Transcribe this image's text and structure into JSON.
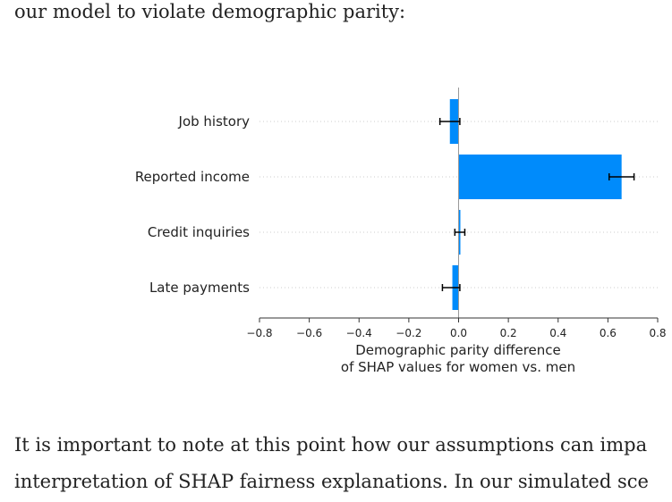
{
  "article": {
    "intro_line": "our model to violate demographic parity:",
    "para_line_1": "It is important to note at this point how our assumptions can impa",
    "para_line_2": "interpretation of SHAP fairness explanations. In our simulated sce"
  },
  "colors": {
    "bar": "#008bfb",
    "text": "#222222",
    "axis": "#333333"
  },
  "chart_data": {
    "type": "bar",
    "orientation": "horizontal",
    "categories": [
      "Job history",
      "Reported income",
      "Credit inquiries",
      "Late payments"
    ],
    "values": [
      -0.035,
      0.655,
      0.005,
      -0.025
    ],
    "error_low": [
      -0.075,
      0.605,
      -0.015,
      -0.065
    ],
    "error_high": [
      0.005,
      0.705,
      0.025,
      0.005
    ],
    "xlim": [
      -0.8,
      0.8
    ],
    "xticks": [
      -0.8,
      -0.6,
      -0.4,
      -0.2,
      0.0,
      0.2,
      0.4,
      0.6,
      0.8
    ],
    "xtick_labels": [
      "−0.8",
      "−0.6",
      "−0.4",
      "−0.2",
      "0.0",
      "0.2",
      "0.4",
      "0.6",
      "0.8"
    ],
    "xlabel_line_1": "Demographic parity difference",
    "xlabel_line_2": "of SHAP values for women vs. men",
    "grid": "horizontal dotted"
  }
}
